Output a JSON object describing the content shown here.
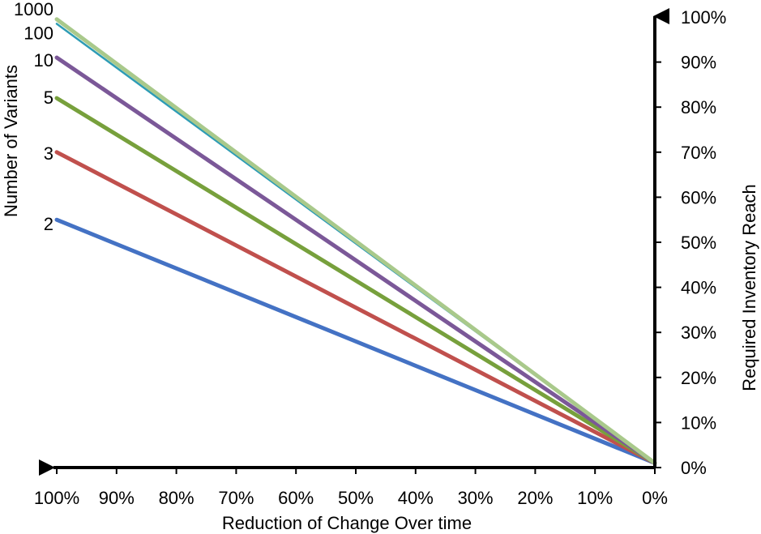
{
  "chart_data": {
    "type": "line",
    "xlabel": "Reduction of Change Over time",
    "ylabel_left": "Number of Variants",
    "ylabel_right": "Required Inventory Reach",
    "x_ticks": [
      "100%",
      "90%",
      "80%",
      "70%",
      "60%",
      "50%",
      "40%",
      "30%",
      "20%",
      "10%",
      "0%"
    ],
    "y_ticks": [
      "0%",
      "10%",
      "20%",
      "30%",
      "40%",
      "50%",
      "60%",
      "70%",
      "80%",
      "90%",
      "100%"
    ],
    "xlim": [
      100,
      0
    ],
    "ylim": [
      0,
      100
    ],
    "series": [
      {
        "name": "2",
        "color": "#4472C4",
        "start": {
          "x": 100,
          "y": 55
        },
        "end": {
          "x": 0,
          "y": 1
        }
      },
      {
        "name": "3",
        "color": "#C0504D",
        "start": {
          "x": 100,
          "y": 70
        },
        "end": {
          "x": 0,
          "y": 1
        }
      },
      {
        "name": "5",
        "color": "#77A03C",
        "start": {
          "x": 100,
          "y": 82
        },
        "end": {
          "x": 0,
          "y": 1
        }
      },
      {
        "name": "10",
        "color": "#7B5898",
        "start": {
          "x": 100,
          "y": 91
        },
        "end": {
          "x": 0,
          "y": 1
        }
      },
      {
        "name": "100",
        "color": "#2E9CB5",
        "start": {
          "x": 100,
          "y": 98.5
        },
        "end": {
          "x": 0,
          "y": 1
        }
      },
      {
        "name": "1000",
        "color": "#A9C98B",
        "start": {
          "x": 100,
          "y": 99.5
        },
        "end": {
          "x": 0,
          "y": 1
        }
      }
    ]
  }
}
